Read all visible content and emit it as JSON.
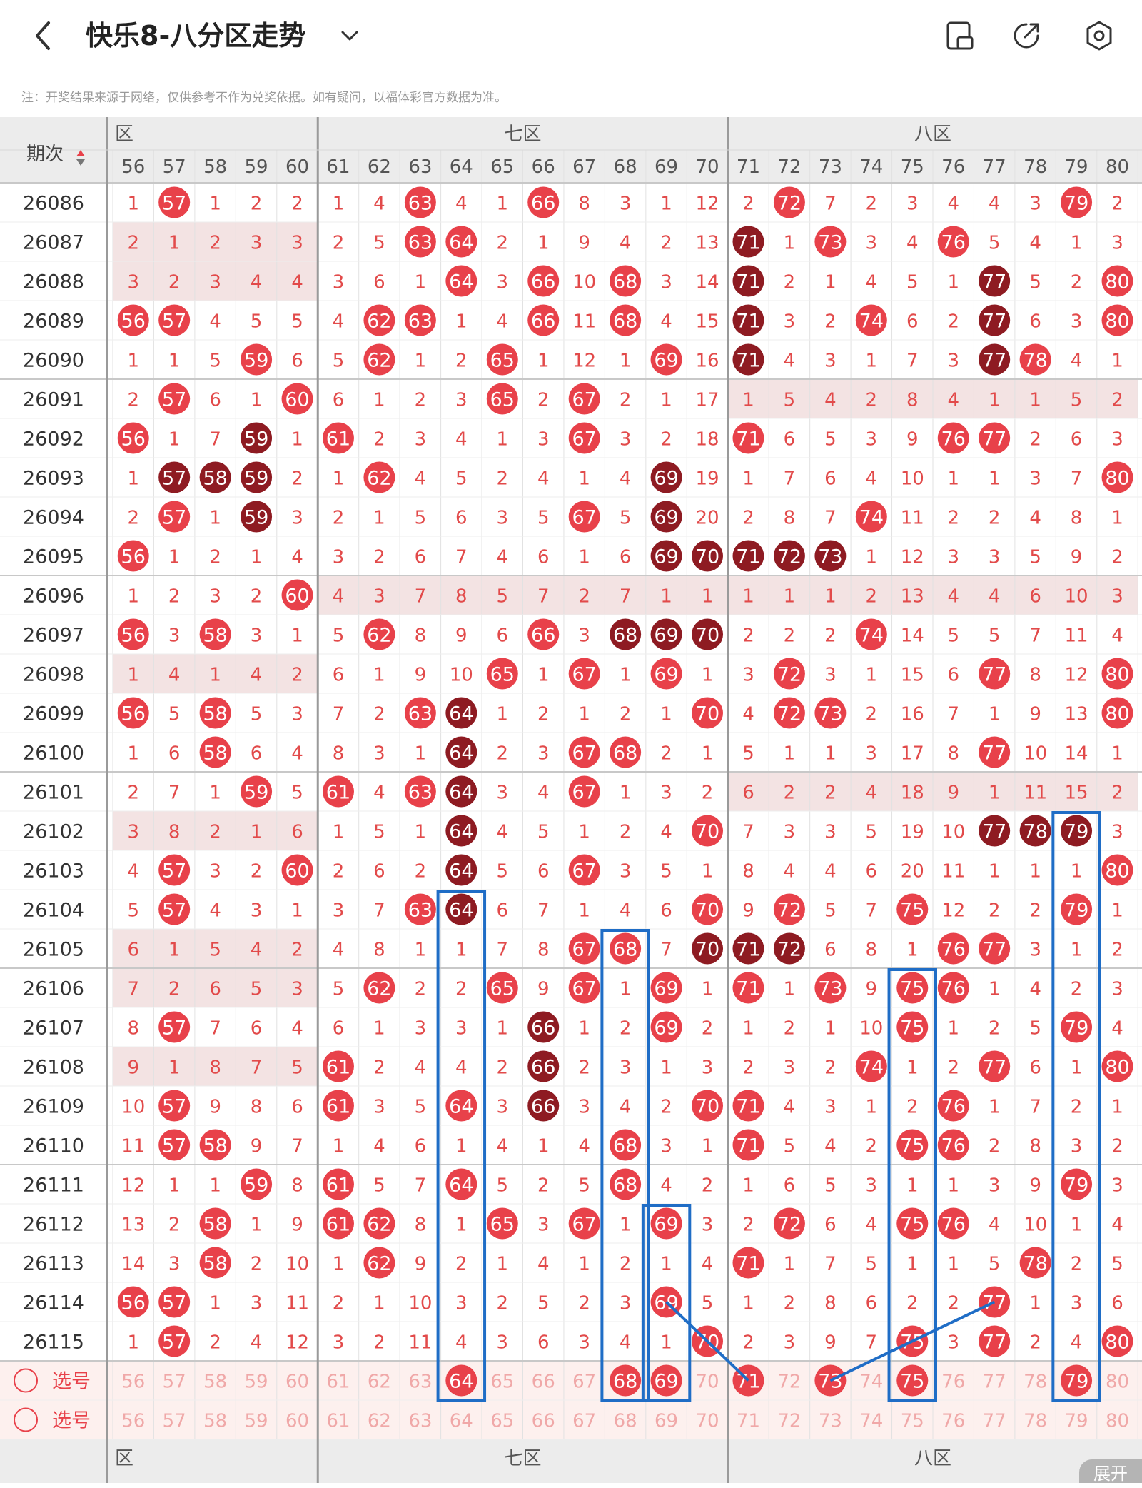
{
  "header": {
    "title": "快乐8-八分区走势",
    "back_icon": "chevron-left-icon",
    "dropdown_icon": "chevron-down-icon",
    "actions": [
      {
        "name": "layout-toggle-icon"
      },
      {
        "name": "share-icon"
      },
      {
        "name": "settings-icon"
      }
    ]
  },
  "notice": "注：开奖结果来源于网络，仅供参考不作为兑奖依据。如有疑问，以福体彩官方数据为准。",
  "table": {
    "period_header": "期次",
    "zones": [
      {
        "label": "六区",
        "visible_label": "六区"
      },
      {
        "label": "七区"
      },
      {
        "label": "八区"
      }
    ],
    "columns": [
      56,
      57,
      58,
      59,
      60,
      61,
      62,
      63,
      64,
      65,
      66,
      67,
      68,
      69,
      70,
      71,
      72,
      73,
      74,
      75,
      76,
      77,
      78,
      79,
      80
    ],
    "rows": [
      {
        "period": "26086",
        "cells": [
          1,
          "r",
          1,
          2,
          2,
          1,
          4,
          "r",
          4,
          1,
          "r",
          8,
          3,
          1,
          12,
          2,
          "r",
          7,
          2,
          3,
          4,
          4,
          3,
          "r",
          2
        ]
      },
      {
        "period": "26087",
        "cells": [
          2,
          1,
          2,
          3,
          3,
          2,
          5,
          "r",
          "r",
          2,
          1,
          9,
          4,
          2,
          13,
          "d",
          1,
          "r",
          3,
          4,
          "r",
          5,
          4,
          1,
          3
        ]
      },
      {
        "period": "26088",
        "cells": [
          3,
          2,
          3,
          4,
          4,
          3,
          6,
          1,
          "r",
          3,
          "r",
          10,
          "r",
          3,
          14,
          "d",
          2,
          1,
          4,
          5,
          1,
          "d",
          5,
          2,
          "r"
        ]
      },
      {
        "period": "26089",
        "cells": [
          "r",
          "r",
          4,
          5,
          5,
          4,
          "r",
          "r",
          1,
          4,
          "r",
          11,
          "r",
          4,
          15,
          "d",
          3,
          2,
          "r",
          6,
          2,
          "d",
          6,
          3,
          "r"
        ]
      },
      {
        "period": "26090",
        "cells": [
          1,
          1,
          5,
          "r",
          6,
          5,
          "r",
          1,
          2,
          "r",
          1,
          12,
          1,
          "r",
          16,
          "d",
          4,
          3,
          1,
          7,
          3,
          "d",
          "r",
          4,
          1
        ]
      },
      {
        "period": "26091",
        "cells": [
          2,
          "r",
          6,
          1,
          "r",
          6,
          1,
          2,
          3,
          "r",
          2,
          "r",
          2,
          1,
          17,
          1,
          5,
          4,
          2,
          8,
          4,
          1,
          1,
          5,
          2
        ]
      },
      {
        "period": "26092",
        "cells": [
          "r",
          1,
          7,
          "d",
          1,
          "r",
          2,
          3,
          4,
          1,
          3,
          "r",
          3,
          2,
          18,
          "r",
          6,
          5,
          3,
          9,
          "r",
          "r",
          2,
          6,
          3
        ]
      },
      {
        "period": "26093",
        "cells": [
          1,
          "d",
          "d",
          "d",
          2,
          1,
          "r",
          4,
          5,
          2,
          4,
          1,
          4,
          "d",
          19,
          1,
          7,
          6,
          4,
          10,
          1,
          1,
          3,
          7,
          "r"
        ]
      },
      {
        "period": "26094",
        "cells": [
          2,
          "r",
          1,
          "d",
          3,
          2,
          1,
          5,
          6,
          3,
          5,
          "r",
          5,
          "d",
          20,
          2,
          8,
          7,
          "r",
          11,
          2,
          2,
          4,
          8,
          1
        ]
      },
      {
        "period": "26095",
        "cells": [
          "r",
          1,
          2,
          1,
          4,
          3,
          2,
          6,
          7,
          4,
          6,
          1,
          6,
          "d",
          "d",
          "d",
          "d",
          "d",
          1,
          12,
          3,
          3,
          5,
          9,
          2
        ]
      },
      {
        "period": "26096",
        "cells": [
          1,
          2,
          3,
          2,
          "r",
          4,
          3,
          7,
          8,
          5,
          7,
          2,
          7,
          1,
          1,
          1,
          1,
          1,
          2,
          13,
          4,
          4,
          6,
          10,
          3
        ]
      },
      {
        "period": "26097",
        "cells": [
          "r",
          3,
          "r",
          3,
          1,
          5,
          "r",
          8,
          9,
          6,
          "r",
          3,
          "d",
          "d",
          "d",
          2,
          2,
          2,
          "r",
          14,
          5,
          5,
          7,
          11,
          4
        ]
      },
      {
        "period": "26098",
        "cells": [
          1,
          4,
          1,
          4,
          2,
          6,
          1,
          9,
          10,
          "r",
          1,
          "r",
          1,
          "r",
          1,
          3,
          "r",
          3,
          1,
          15,
          6,
          "r",
          8,
          12,
          "r"
        ]
      },
      {
        "period": "26099",
        "cells": [
          "r",
          5,
          "r",
          5,
          3,
          7,
          2,
          "r",
          "d",
          1,
          2,
          1,
          2,
          1,
          "r",
          4,
          "r",
          "r",
          2,
          16,
          7,
          1,
          9,
          13,
          "r"
        ]
      },
      {
        "period": "26100",
        "cells": [
          1,
          6,
          "r",
          6,
          4,
          8,
          3,
          1,
          "d",
          2,
          3,
          "r",
          "r",
          2,
          1,
          5,
          1,
          1,
          3,
          17,
          8,
          "r",
          10,
          14,
          1
        ]
      },
      {
        "period": "26101",
        "cells": [
          2,
          7,
          1,
          "r",
          5,
          "r",
          4,
          "r",
          "d",
          3,
          4,
          "r",
          1,
          3,
          2,
          6,
          2,
          2,
          4,
          18,
          9,
          1,
          11,
          15,
          2
        ]
      },
      {
        "period": "26102",
        "cells": [
          3,
          8,
          2,
          1,
          6,
          1,
          5,
          1,
          "d",
          4,
          5,
          1,
          2,
          4,
          "r",
          7,
          3,
          3,
          5,
          19,
          10,
          "d",
          "d",
          "d",
          3
        ]
      },
      {
        "period": "26103",
        "cells": [
          4,
          "r",
          3,
          2,
          "r",
          2,
          6,
          2,
          "d",
          5,
          6,
          "r",
          3,
          5,
          1,
          8,
          4,
          4,
          6,
          20,
          11,
          1,
          1,
          1,
          "r"
        ]
      },
      {
        "period": "26104",
        "cells": [
          5,
          "r",
          4,
          3,
          1,
          3,
          7,
          "r",
          "d",
          6,
          7,
          1,
          4,
          6,
          "r",
          9,
          "r",
          5,
          7,
          "r",
          12,
          2,
          2,
          "r",
          1
        ]
      },
      {
        "period": "26105",
        "cells": [
          6,
          1,
          5,
          4,
          2,
          4,
          8,
          1,
          1,
          7,
          8,
          "r",
          "r",
          7,
          "d",
          "d",
          "d",
          6,
          8,
          1,
          "r",
          "r",
          3,
          1,
          2
        ]
      },
      {
        "period": "26106",
        "cells": [
          7,
          2,
          6,
          5,
          3,
          5,
          "r",
          2,
          2,
          "r",
          9,
          "r",
          1,
          "r",
          1,
          "r",
          1,
          "r",
          9,
          "r",
          "r",
          1,
          4,
          2,
          3
        ]
      },
      {
        "period": "26107",
        "cells": [
          8,
          "r",
          7,
          6,
          4,
          6,
          1,
          3,
          3,
          1,
          "d",
          1,
          2,
          "r",
          2,
          1,
          2,
          1,
          10,
          "r",
          1,
          2,
          5,
          "r",
          4
        ]
      },
      {
        "period": "26108",
        "cells": [
          9,
          1,
          8,
          7,
          5,
          "r",
          2,
          4,
          4,
          2,
          "d",
          2,
          3,
          1,
          3,
          2,
          3,
          2,
          "r",
          1,
          2,
          "r",
          6,
          1,
          "r"
        ]
      },
      {
        "period": "26109",
        "cells": [
          10,
          "r",
          9,
          8,
          6,
          "r",
          3,
          5,
          "r",
          3,
          "d",
          3,
          4,
          2,
          "r",
          "r",
          4,
          3,
          1,
          2,
          "r",
          1,
          7,
          2,
          1
        ]
      },
      {
        "period": "26110",
        "cells": [
          11,
          "r",
          "r",
          9,
          7,
          1,
          4,
          6,
          1,
          4,
          1,
          4,
          "r",
          3,
          1,
          "r",
          5,
          4,
          2,
          "r",
          "r",
          2,
          8,
          3,
          2
        ]
      },
      {
        "period": "26111",
        "cells": [
          12,
          1,
          1,
          "r",
          8,
          "r",
          5,
          7,
          "r",
          5,
          2,
          5,
          "r",
          4,
          2,
          1,
          6,
          5,
          3,
          1,
          1,
          3,
          9,
          "r",
          3
        ]
      },
      {
        "period": "26112",
        "cells": [
          13,
          2,
          "r",
          1,
          9,
          "r",
          "r",
          8,
          1,
          "r",
          3,
          "r",
          1,
          "r",
          3,
          2,
          "r",
          6,
          4,
          "r",
          "r",
          4,
          10,
          1,
          4
        ]
      },
      {
        "period": "26113",
        "cells": [
          14,
          3,
          "r",
          2,
          10,
          1,
          "r",
          9,
          2,
          1,
          4,
          1,
          2,
          1,
          4,
          "r",
          1,
          7,
          5,
          1,
          1,
          5,
          "r",
          2,
          5
        ]
      },
      {
        "period": "26114",
        "cells": [
          "r",
          "r",
          1,
          3,
          11,
          2,
          1,
          10,
          3,
          2,
          5,
          2,
          3,
          "r",
          5,
          1,
          2,
          8,
          6,
          2,
          2,
          "r",
          1,
          3,
          6
        ]
      },
      {
        "period": "26115",
        "cells": [
          1,
          "r",
          2,
          4,
          12,
          3,
          2,
          11,
          4,
          3,
          6,
          3,
          4,
          1,
          "r",
          2,
          3,
          9,
          7,
          "r",
          3,
          "r",
          2,
          4,
          "r"
        ]
      }
    ],
    "pick_rows": [
      {
        "label": "选号",
        "selected": [
          64,
          68,
          69,
          71,
          73,
          75,
          79
        ]
      },
      {
        "label": "选号",
        "selected": []
      }
    ],
    "highlight_boxes": [
      {
        "column": 64,
        "from_period": "26104",
        "to": "pick1"
      },
      {
        "column": 68,
        "from_period": "26105",
        "to": "pick1"
      },
      {
        "column": 69,
        "from_period": "26112",
        "to": "pick1"
      },
      {
        "column": 75,
        "from_period": "26106",
        "to": "pick1"
      },
      {
        "column": 79,
        "from_period": "26102",
        "to": "pick1"
      }
    ],
    "trend_lines": [
      {
        "from_column": 69,
        "from_period": "26114",
        "to_column": 71,
        "to": "pick1"
      },
      {
        "from_column": 73,
        "from_period": "pick1",
        "to_column": 77,
        "to": "26114"
      }
    ],
    "expand_label": "展开"
  },
  "colors": {
    "red_ball": "#e8414a",
    "dark_ball": "#8e1b22",
    "miss_text": "#e24a4a",
    "header_bg": "#ececec",
    "shade_bg": "#f3e3e3",
    "pick_bg": "#fdf0ee",
    "box": "#1f6dc6",
    "divider": "#9a9a9a",
    "pick_num": "#f0a8a8"
  }
}
